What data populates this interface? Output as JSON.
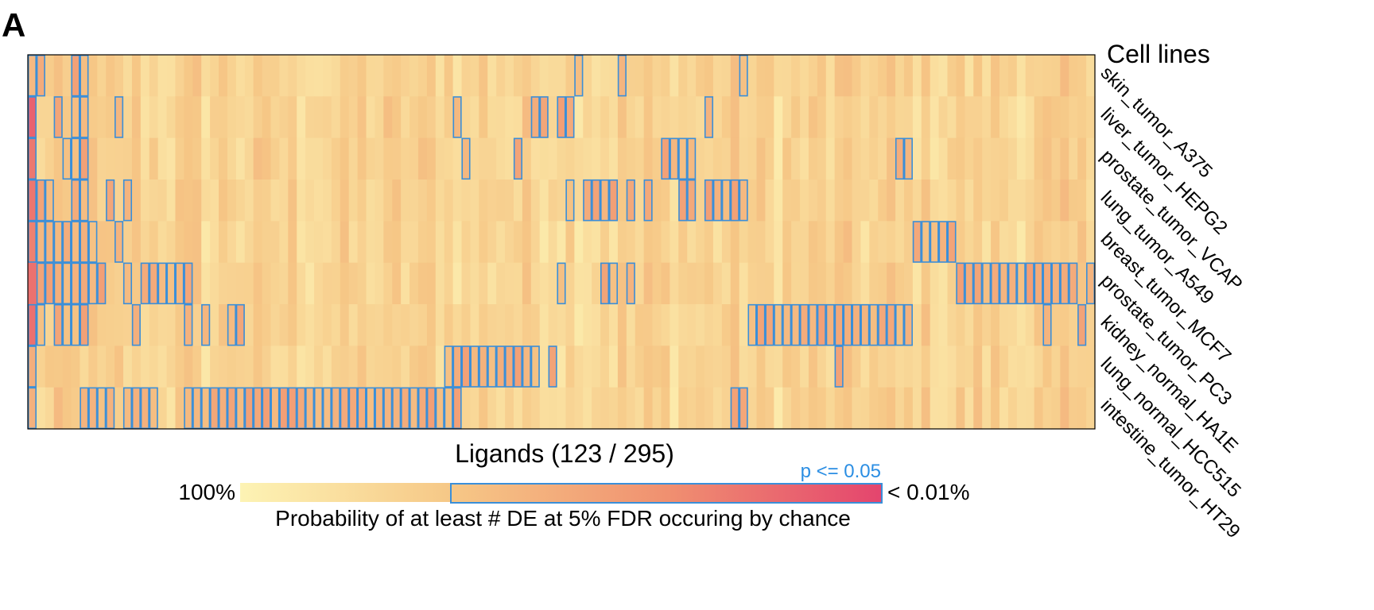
{
  "panel_label": "A",
  "chart_data": {
    "type": "heatmap",
    "title": "",
    "xlabel": "Ligands (123 / 295)",
    "row_axis_title": "Cell lines",
    "rows": [
      "skin_tumor_A375",
      "liver_tumor_HEPG2",
      "prostate_tumor_VCAP",
      "lung_tumor_A549",
      "breast_tumor_MCF7",
      "prostate_tumor_PC3",
      "kidney_normal_HA1E",
      "lung_normal_HCC515",
      "intestine_tumor_HT29"
    ],
    "n_columns": 123,
    "value_scale": {
      "low_label": "100%",
      "high_label": "< 0.01%",
      "colors": [
        "#fdf3b4",
        "#f6c786",
        "#f09070",
        "#e4456e"
      ]
    },
    "significance_label": "p <= 0.05",
    "significance_color": "#3a8fd9",
    "colorbar_title": "Probability of at least # DE at 5% FDR occuring by chance",
    "significant_cells": [
      {
        "row": 0,
        "cols": [
          0,
          1,
          5,
          6,
          63,
          68,
          82
        ]
      },
      {
        "row": 1,
        "cols": [
          0,
          3,
          5,
          6,
          10,
          49,
          58,
          59,
          61,
          62,
          78
        ]
      },
      {
        "row": 2,
        "cols": [
          0,
          4,
          5,
          6,
          50,
          56,
          73,
          74,
          75,
          76,
          100,
          101
        ]
      },
      {
        "row": 3,
        "cols": [
          0,
          1,
          2,
          5,
          6,
          9,
          11,
          62,
          64,
          65,
          66,
          67,
          69,
          71,
          75,
          76,
          78,
          79,
          80,
          81,
          82
        ]
      },
      {
        "row": 4,
        "cols": [
          0,
          1,
          2,
          3,
          4,
          5,
          6,
          7,
          10,
          102,
          103,
          104,
          105,
          106
        ]
      },
      {
        "row": 5,
        "cols": [
          1,
          2,
          3,
          4,
          5,
          6,
          7,
          8,
          11,
          13,
          14,
          15,
          16,
          17,
          18,
          61,
          66,
          67,
          69,
          107,
          108,
          109,
          110,
          111,
          112,
          113,
          114,
          115,
          116,
          117,
          118,
          119,
          120,
          122
        ]
      },
      {
        "row": 6,
        "cols": [
          0,
          1,
          3,
          4,
          5,
          6,
          12,
          18,
          20,
          23,
          24,
          83,
          84,
          85,
          86,
          87,
          88,
          89,
          90,
          91,
          92,
          93,
          94,
          95,
          96,
          97,
          98,
          99,
          100,
          101,
          117,
          121
        ]
      },
      {
        "row": 7,
        "cols": [
          0,
          48,
          49,
          50,
          51,
          52,
          53,
          54,
          55,
          56,
          57,
          58,
          60,
          93
        ]
      },
      {
        "row": 8,
        "cols": [
          0,
          6,
          7,
          8,
          9,
          11,
          12,
          13,
          14,
          18,
          19,
          20,
          21,
          22,
          23,
          24,
          25,
          26,
          27,
          28,
          29,
          30,
          31,
          32,
          33,
          34,
          35,
          36,
          37,
          38,
          39,
          40,
          41,
          42,
          43,
          44,
          45,
          46,
          47,
          48,
          49,
          81,
          82
        ]
      }
    ]
  }
}
